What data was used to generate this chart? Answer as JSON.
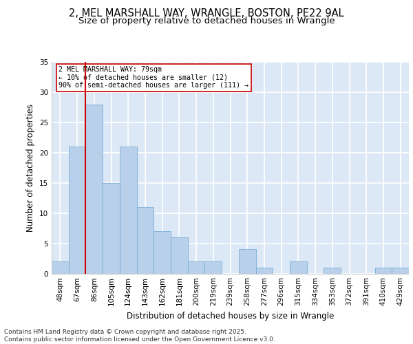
{
  "title1": "2, MEL MARSHALL WAY, WRANGLE, BOSTON, PE22 9AL",
  "title2": "Size of property relative to detached houses in Wrangle",
  "xlabel": "Distribution of detached houses by size in Wrangle",
  "ylabel": "Number of detached properties",
  "categories": [
    "48sqm",
    "67sqm",
    "86sqm",
    "105sqm",
    "124sqm",
    "143sqm",
    "162sqm",
    "181sqm",
    "200sqm",
    "219sqm",
    "239sqm",
    "258sqm",
    "277sqm",
    "296sqm",
    "315sqm",
    "334sqm",
    "353sqm",
    "372sqm",
    "391sqm",
    "410sqm",
    "429sqm"
  ],
  "values": [
    2,
    21,
    28,
    15,
    21,
    11,
    7,
    6,
    2,
    2,
    0,
    4,
    1,
    0,
    2,
    0,
    1,
    0,
    0,
    1,
    1
  ],
  "bar_color": "#b8d0ea",
  "bar_edge_color": "#7aaed6",
  "vline_color": "#cc0000",
  "annotation_text": "2 MEL MARSHALL WAY: 79sqm\n← 10% of detached houses are smaller (12)\n90% of semi-detached houses are larger (111) →",
  "annotation_box_color": "#ffffff",
  "annotation_box_edge": "#cc0000",
  "ylim": [
    0,
    35
  ],
  "yticks": [
    0,
    5,
    10,
    15,
    20,
    25,
    30,
    35
  ],
  "footer_text": "Contains HM Land Registry data © Crown copyright and database right 2025.\nContains public sector information licensed under the Open Government Licence v3.0.",
  "background_color": "#dce8f5",
  "grid_color": "#ffffff",
  "title_fontsize": 10.5,
  "subtitle_fontsize": 9.5,
  "axis_fontsize": 8.5,
  "tick_fontsize": 7.5,
  "footer_fontsize": 6.5
}
